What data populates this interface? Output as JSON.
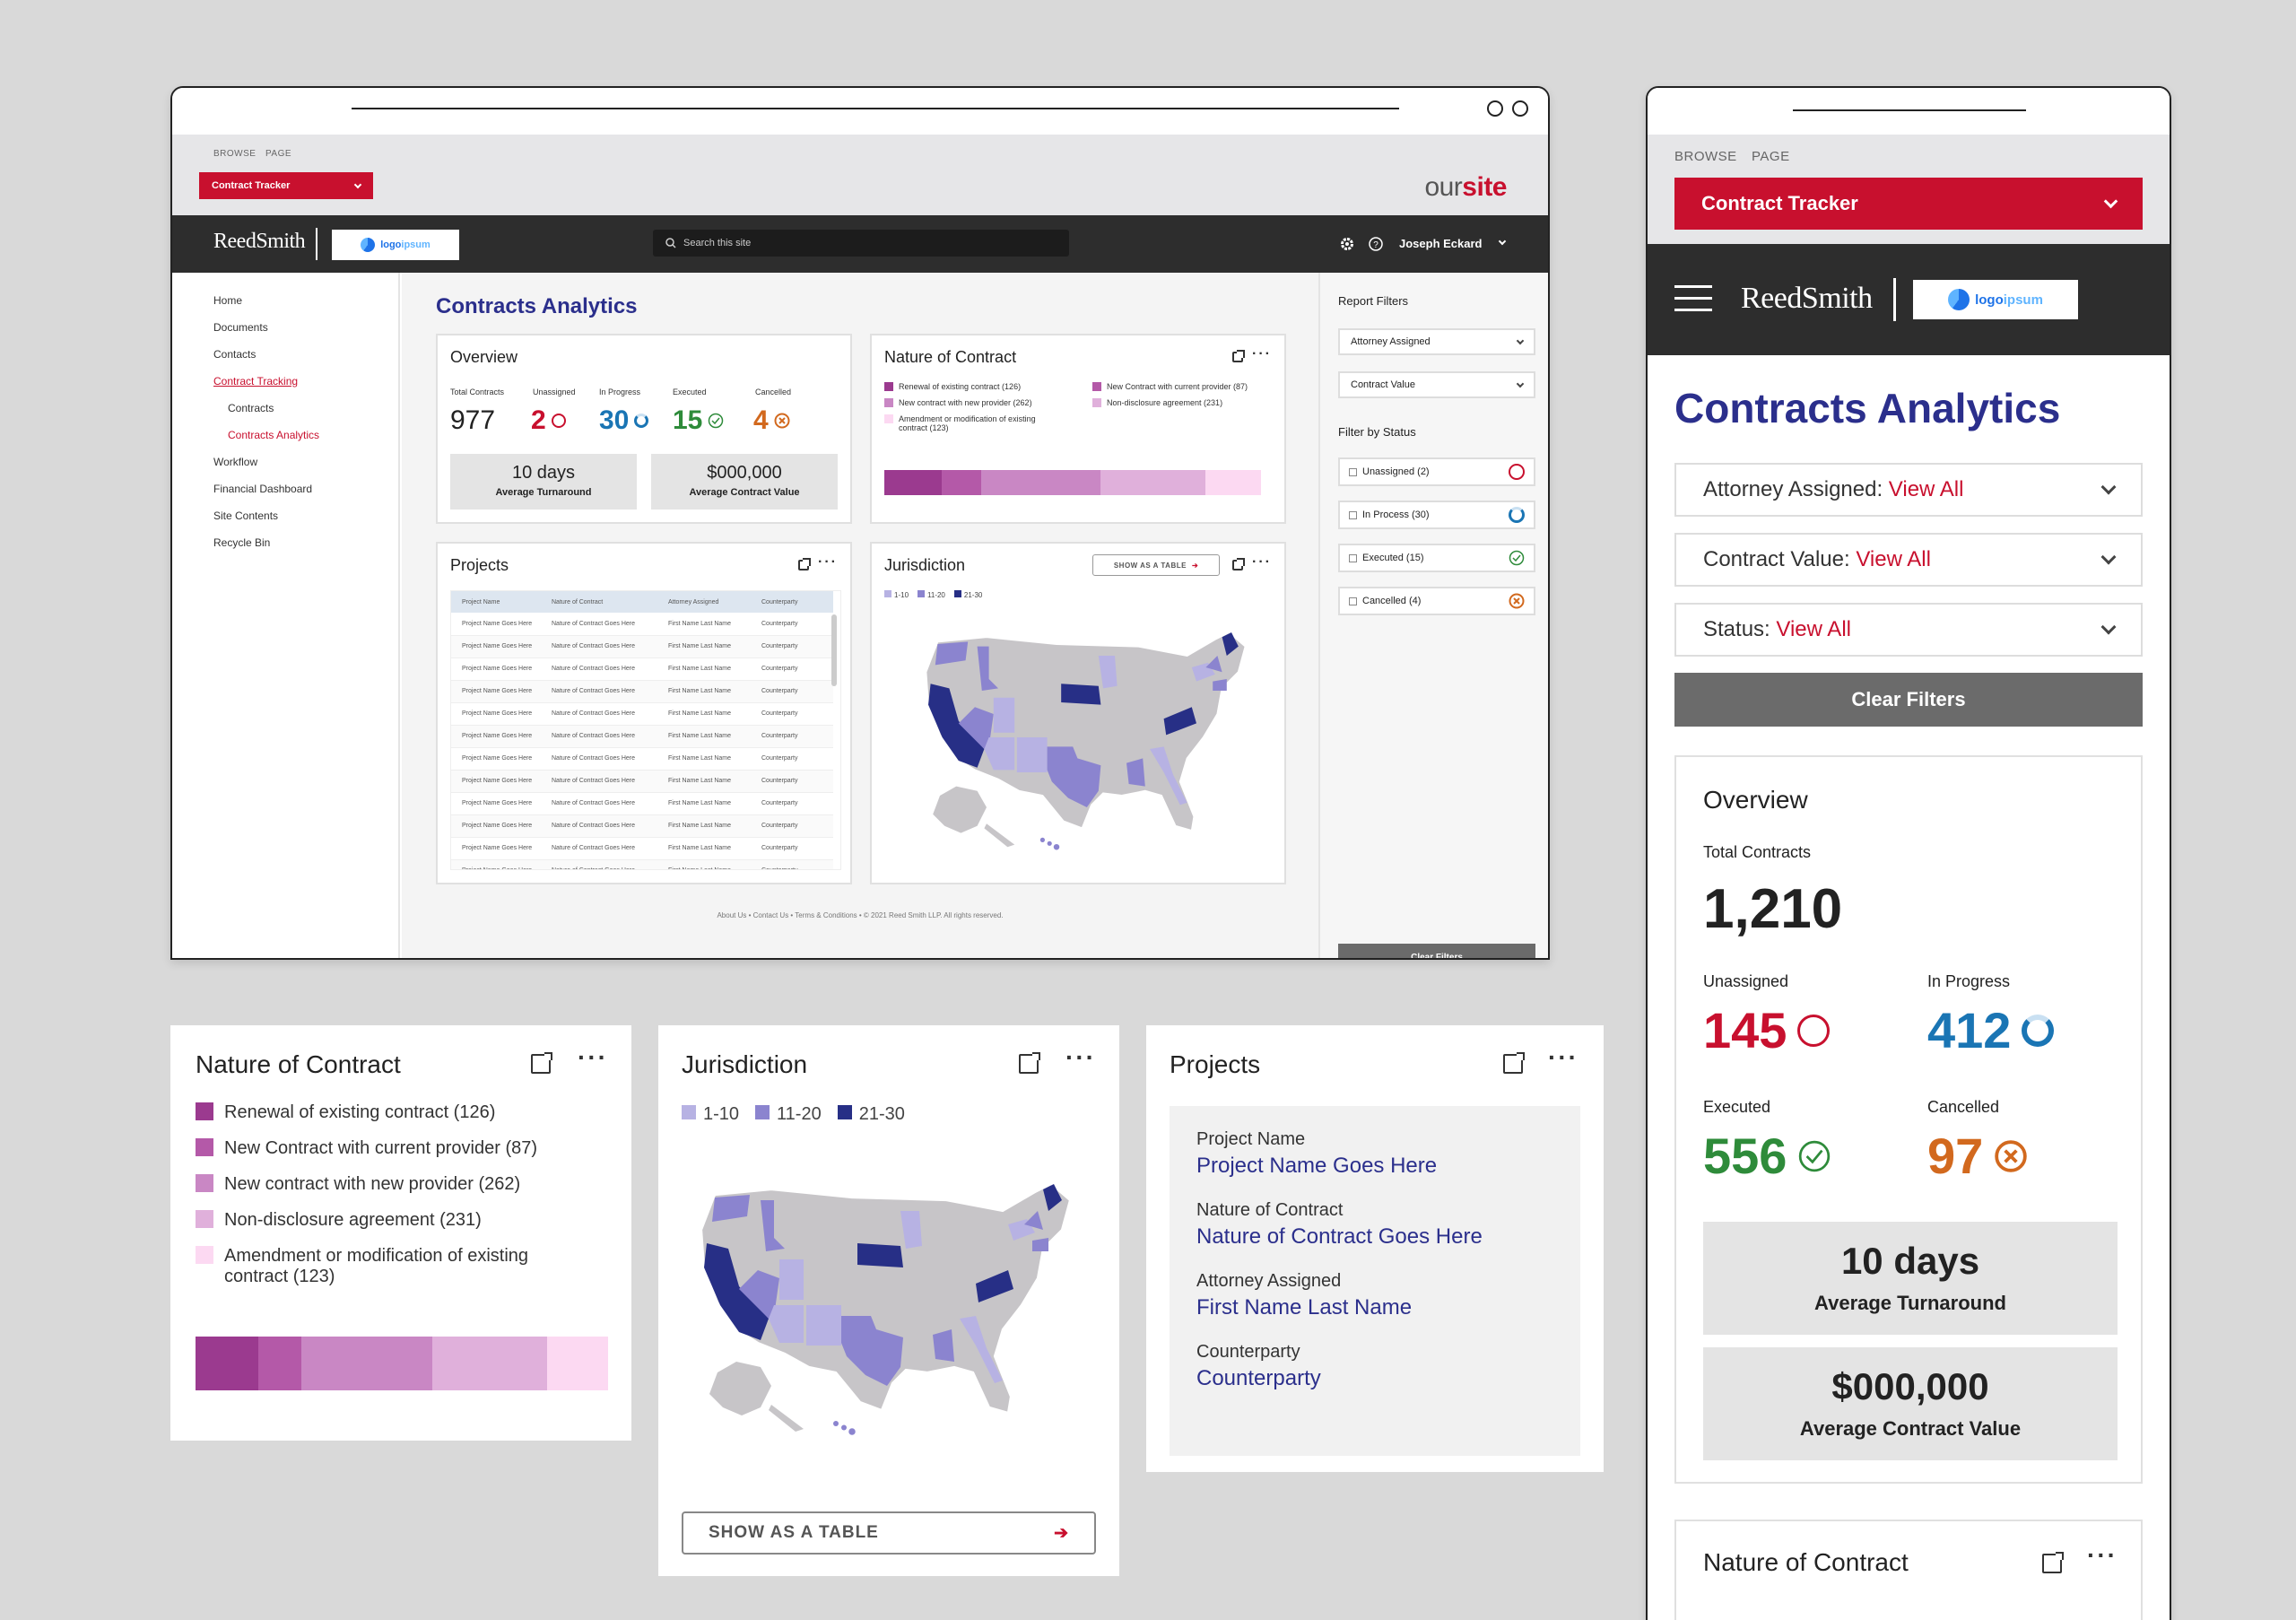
{
  "colors": {
    "accent": "#c8102e",
    "navy": "#2b2f8c",
    "green": "#2e8b3a",
    "orange": "#d2691e",
    "blue": "#1a75b4",
    "dark": "#2d2d2d"
  },
  "top_nav": {
    "browse": "BROWSE",
    "page": "PAGE"
  },
  "site_selector": "Contract Tracker",
  "site_logo": {
    "our": "our",
    "site": "site"
  },
  "brand": {
    "firm": "ReedSmith",
    "partner_logo_a": "logo",
    "partner_logo_b": "ipsum"
  },
  "header": {
    "search_placeholder": "Search this site",
    "user": "Joseph Eckard"
  },
  "sidebar": {
    "items": [
      "Home",
      "Documents",
      "Contacts",
      "Contract Tracking",
      "Contracts",
      "Contracts Analytics",
      "Workflow",
      "Financial Dashboard",
      "Site Contents",
      "Recycle Bin"
    ]
  },
  "page_title": "Contracts Analytics",
  "overview": {
    "title": "Overview",
    "total_label": "Total Contracts",
    "total": "977",
    "unassigned_label": "Unassigned",
    "unassigned": "2",
    "inprogress_label": "In Progress",
    "inprogress": "30",
    "executed_label": "Executed",
    "executed": "15",
    "cancelled_label": "Cancelled",
    "cancelled": "4",
    "turnaround": "10 days",
    "turnaround_label": "Average Turnaround",
    "value": "$000,000",
    "value_label": "Average Contract Value"
  },
  "nature": {
    "title": "Nature of Contract",
    "legend_small": [
      "Renewal of existing contract (126)",
      "New contract with new provider (262)",
      "Amendment or modification of existing contract (123)",
      "New Contract with current provider (87)",
      "Non-disclosure agreement (231)"
    ],
    "legend_large": [
      "Renewal of existing contract (126)",
      "New Contract with current provider (87)",
      "New contract with new provider (262)",
      "Non-disclosure agreement (231)",
      "Amendment or modification of existing contract (123)"
    ],
    "bar_colors": [
      "#9b3a8f",
      "#b459a8",
      "#c987c4",
      "#e0b0db",
      "#fcd9f2"
    ]
  },
  "chart_data": {
    "type": "bar",
    "title": "Nature of Contract",
    "categories": [
      "Renewal of existing contract",
      "New Contract with current provider",
      "New contract with new provider",
      "Non-disclosure agreement",
      "Amendment or modification of existing contract"
    ],
    "values": [
      126,
      87,
      262,
      231,
      123
    ]
  },
  "projects": {
    "title": "Projects",
    "columns": [
      "Project Name",
      "Nature of Contract",
      "Attorney Assigned",
      "Counterparty"
    ],
    "row": [
      "Project Name Goes Here",
      "Nature of Contract Goes Here",
      "First Name Last Name",
      "Counterparty"
    ],
    "row_count": 12,
    "detail": [
      {
        "label": "Project Name",
        "value": "Project Name Goes Here"
      },
      {
        "label": "Nature of Contract",
        "value": "Nature of Contract Goes Here"
      },
      {
        "label": "Attorney Assigned",
        "value": "First Name Last Name"
      },
      {
        "label": "Counterparty",
        "value": "Counterparty"
      }
    ]
  },
  "jurisdiction": {
    "title": "Jurisdiction",
    "show_table": "SHOW AS A TABLE",
    "legend": [
      "1-10",
      "11-20",
      "21-30"
    ],
    "legend_colors": [
      "#b7b2e3",
      "#8b84cf",
      "#272f86"
    ]
  },
  "filters": {
    "report_title": "Report Filters",
    "attorney": "Attorney Assigned",
    "contract_value": "Contract Value",
    "status_title": "Filter by Status",
    "statuses": [
      "Unassigned (2)",
      "In Process (30)",
      "Executed (15)",
      "Cancelled (4)"
    ],
    "clear": "Clear Filters"
  },
  "footer": "About Us • Contact Us • Terms & Conditions • © 2021 Reed Smith LLP. All rights reserved.",
  "mobile": {
    "attorney_label": "Attorney Assigned: ",
    "contract_value_label": "Contract Value: ",
    "status_label": "Status: ",
    "view_all": "View All",
    "clear": "Clear Filters",
    "total": "1,210",
    "unassigned": "145",
    "inprogress": "412",
    "executed": "556",
    "cancelled": "97",
    "turnaround": "10 days",
    "turnaround_label": "Average Turnaround",
    "value": "$000,000",
    "value_label": "Average Contract Value"
  }
}
